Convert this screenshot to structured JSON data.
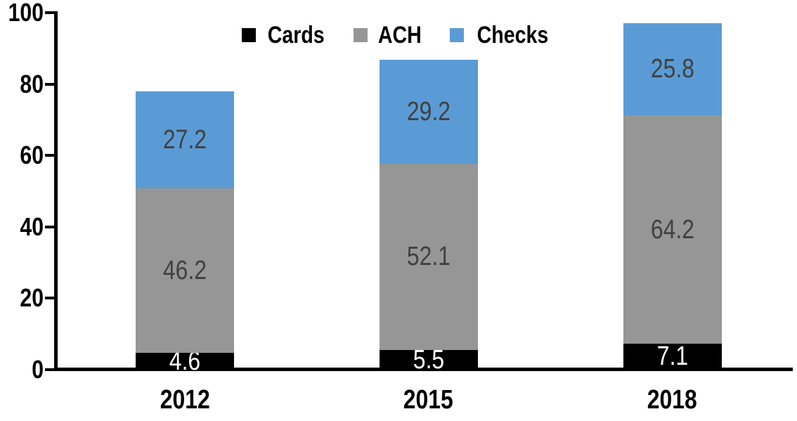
{
  "chart_data": {
    "type": "bar",
    "stacked": true,
    "title": "",
    "xlabel": "",
    "ylabel": "",
    "categories": [
      "2012",
      "2015",
      "2018"
    ],
    "series": [
      {
        "name": "Cards",
        "color": "#000000",
        "label_color": "#ffffff",
        "values": [
          4.6,
          5.5,
          7.1
        ]
      },
      {
        "name": "ACH",
        "color": "#969696",
        "label_color": "#404040",
        "values": [
          46.2,
          52.1,
          64.2
        ]
      },
      {
        "name": "Checks",
        "color": "#5b9bd5",
        "label_color": "#404040",
        "values": [
          27.2,
          29.2,
          25.8
        ]
      }
    ],
    "ylim": [
      0,
      100
    ],
    "yticks": [
      0,
      20,
      40,
      60,
      80,
      100
    ],
    "legend_position": "top-center",
    "grid": false,
    "axis_color": "#000000",
    "background_color": "#ffffff"
  }
}
